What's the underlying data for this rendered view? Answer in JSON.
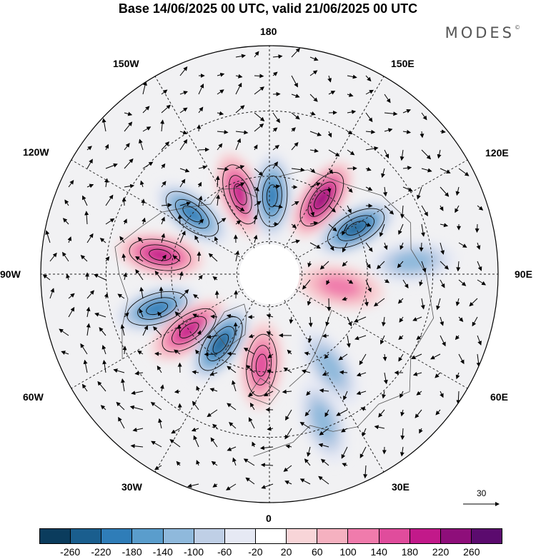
{
  "title": "Base 14/06/2025 00 UTC, valid 21/06/2025 00 UTC",
  "brand": "MODES",
  "brand_mark": "©",
  "longitude_labels": {
    "lon_180": "180",
    "lon_150w": "150W",
    "lon_150e": "150E",
    "lon_120w": "120W",
    "lon_120e": "120E",
    "lon_90w": "90W",
    "lon_90e": "90E",
    "lon_60w": "60W",
    "lon_60e": "60E",
    "lon_30w": "30W",
    "lon_30e": "30E",
    "lon_0": "0"
  },
  "reference_vector_label": "30",
  "colorbar": {
    "colors": [
      "#0b3c5d",
      "#1a5e8e",
      "#2f7db8",
      "#5a9dcc",
      "#8fb9dc",
      "#bfcfe6",
      "#e6e9f4",
      "#ffffff",
      "#f8d5d8",
      "#f5b1c0",
      "#f07bac",
      "#e04c9c",
      "#c2198a",
      "#8e0e7a",
      "#5b0b6e"
    ],
    "ticks": [
      "-260",
      "-220",
      "-180",
      "-140",
      "-100",
      "-60",
      "-20",
      "20",
      "60",
      "100",
      "140",
      "180",
      "220",
      "260"
    ]
  },
  "anomaly_features": [
    {
      "sign": "positive",
      "level": 4,
      "lon": -160,
      "colat": 26
    },
    {
      "sign": "negative",
      "level": 4,
      "lon": 178,
      "colat": 24
    },
    {
      "sign": "positive",
      "level": 5,
      "lon": 145,
      "colat": 28
    },
    {
      "sign": "negative",
      "level": 5,
      "lon": 118,
      "colat": 30
    },
    {
      "sign": "negative",
      "level": 4,
      "lon": -128,
      "colat": 30
    },
    {
      "sign": "positive",
      "level": 4,
      "lon": -100,
      "colat": 34
    },
    {
      "sign": "negative",
      "level": 4,
      "lon": -73,
      "colat": 36
    },
    {
      "sign": "positive",
      "level": 4,
      "lon": -55,
      "colat": 30
    },
    {
      "sign": "negative",
      "level": 5,
      "lon": -35,
      "colat": 26
    },
    {
      "sign": "positive",
      "level": 3,
      "lon": -5,
      "colat": 28
    },
    {
      "sign": "negative",
      "level": 2,
      "lon": 33,
      "colat": 34
    },
    {
      "sign": "positive",
      "level": 2,
      "lon": 80,
      "colat": 22
    },
    {
      "sign": "negative",
      "level": 2,
      "lon": 95,
      "colat": 44
    },
    {
      "sign": "negative",
      "level": 2,
      "lon": 20,
      "colat": 48
    }
  ]
}
